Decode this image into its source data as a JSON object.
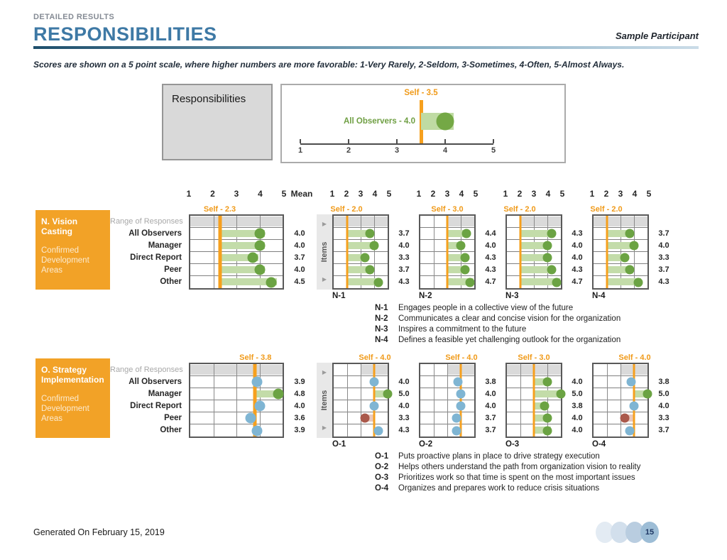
{
  "header": {
    "eyebrow": "DETAILED RESULTS",
    "title": "RESPONSIBILITIES",
    "participant": "Sample Participant",
    "note": "Scores are shown on a 5 point scale, where higher numbers are more favorable: 1-Very Rarely, 2-Seldom, 3-Sometimes, 4-Often, 5-Almost Always."
  },
  "summary": {
    "box_label": "Responsibilities"
  },
  "scale_header": {
    "ticks": [
      "1",
      "2",
      "3",
      "4",
      "5"
    ],
    "mean_label": "Mean"
  },
  "range_row_label": "Range of Responses",
  "rater_labels": [
    "All Observers",
    "Manager",
    "Direct Report",
    "Peer",
    "Other"
  ],
  "items_strip": {
    "label": "Items",
    "arrow_icon": "▶"
  },
  "colors": {
    "accent_orange": "#F6A01E",
    "green_dot": "#6BA343",
    "green_bar": "#C3DCA9",
    "blue_dot": "#7FB5D3",
    "red_dot": "#AA594B",
    "red_bar": "#E9C9BE",
    "title_blue": "#3E79A5",
    "range_gray": "#DADADA"
  },
  "chart_data": [
    {
      "type": "gauge",
      "title": "Responsibilities",
      "axis_min": 1,
      "axis_max": 5,
      "axis_ticks": [
        "1",
        "2",
        "3",
        "4",
        "5"
      ],
      "self_label": "Self - 3.5",
      "self_value": 3.5,
      "observers_label": "All Observers - 4.0",
      "observers_value": 4.0
    },
    {
      "type": "dot-plot-section",
      "section_title": "N. Vision Casting",
      "section_subtitle": "Confirmed Development Areas",
      "main": {
        "self_label": "Self - 2.3",
        "self": 2.3,
        "range": [
          1,
          5
        ],
        "rows": [
          {
            "value": 4.0,
            "color": "green",
            "mean": "4.0"
          },
          {
            "value": 4.0,
            "color": "green",
            "mean": "4.0"
          },
          {
            "value": 3.7,
            "color": "green",
            "mean": "3.7"
          },
          {
            "value": 4.0,
            "color": "green",
            "mean": "4.0"
          },
          {
            "value": 4.5,
            "color": "green",
            "mean": "4.5"
          }
        ]
      },
      "items": [
        {
          "code": "N-1",
          "self_label": "Self - 2.0",
          "self": 2.0,
          "range": [
            1,
            5
          ],
          "rows": [
            {
              "value": 3.7,
              "color": "green",
              "mean": "3.7"
            },
            {
              "value": 4.0,
              "color": "green",
              "mean": "4.0"
            },
            {
              "value": 3.3,
              "color": "green",
              "mean": "3.3"
            },
            {
              "value": 3.7,
              "color": "green",
              "mean": "3.7"
            },
            {
              "value": 4.3,
              "color": "green",
              "mean": "4.3"
            }
          ],
          "description": "Engages people in a collective view of the future"
        },
        {
          "code": "N-2",
          "self_label": "Self - 3.0",
          "self": 3.0,
          "range": [
            3,
            5
          ],
          "rows": [
            {
              "value": 4.4,
              "color": "green",
              "mean": "4.4"
            },
            {
              "value": 4.0,
              "color": "green",
              "mean": "4.0"
            },
            {
              "value": 4.3,
              "color": "green",
              "mean": "4.3"
            },
            {
              "value": 4.3,
              "color": "green",
              "mean": "4.3"
            },
            {
              "value": 4.7,
              "color": "green",
              "mean": "4.7"
            }
          ],
          "description": "Communicates a clear and concise vision for the organization"
        },
        {
          "code": "N-3",
          "self_label": "Self - 2.0",
          "self": 2.0,
          "range": [
            2,
            5
          ],
          "rows": [
            {
              "value": 4.3,
              "color": "green",
              "mean": "4.3"
            },
            {
              "value": 4.0,
              "color": "green",
              "mean": "4.0"
            },
            {
              "value": 4.0,
              "color": "green",
              "mean": "4.0"
            },
            {
              "value": 4.3,
              "color": "green",
              "mean": "4.3"
            },
            {
              "value": 4.7,
              "color": "green",
              "mean": "4.7"
            }
          ],
          "description": "Inspires a commitment to the future"
        },
        {
          "code": "N-4",
          "self_label": "Self - 2.0",
          "self": 2.0,
          "range": [
            1,
            5
          ],
          "rows": [
            {
              "value": 3.7,
              "color": "green",
              "mean": "3.7"
            },
            {
              "value": 4.0,
              "color": "green",
              "mean": "4.0"
            },
            {
              "value": 3.3,
              "color": "green",
              "mean": "3.3"
            },
            {
              "value": 3.7,
              "color": "green",
              "mean": "3.7"
            },
            {
              "value": 4.3,
              "color": "green",
              "mean": "4.3"
            }
          ],
          "description": "Defines a feasible yet challenging outlook for the organization"
        }
      ]
    },
    {
      "type": "dot-plot-section",
      "section_title": "O. Strategy Implementation",
      "section_subtitle": "Confirmed Development Areas",
      "main": {
        "self_label": "Self - 3.8",
        "self": 3.8,
        "range": [
          1,
          5
        ],
        "rows": [
          {
            "value": 3.9,
            "color": "blue",
            "mean": "3.9"
          },
          {
            "value": 4.8,
            "color": "green",
            "mean": "4.8"
          },
          {
            "value": 4.0,
            "color": "blue",
            "mean": "4.0"
          },
          {
            "value": 3.6,
            "color": "blue",
            "mean": "3.6"
          },
          {
            "value": 3.9,
            "color": "blue",
            "mean": "3.9"
          }
        ]
      },
      "items": [
        {
          "code": "O-1",
          "self_label": "Self - 4.0",
          "self": 4.0,
          "range": [
            3,
            5
          ],
          "rows": [
            {
              "value": 4.0,
              "color": "blue",
              "mean": "4.0"
            },
            {
              "value": 5.0,
              "color": "green",
              "mean": "5.0"
            },
            {
              "value": 4.0,
              "color": "blue",
              "mean": "4.0"
            },
            {
              "value": 3.3,
              "color": "red",
              "mean": "3.3"
            },
            {
              "value": 4.3,
              "color": "blue",
              "mean": "4.3"
            }
          ],
          "description": "Puts proactive plans in place to drive strategy execution"
        },
        {
          "code": "O-2",
          "self_label": "Self - 4.0",
          "self": 4.0,
          "range": [
            3,
            5
          ],
          "rows": [
            {
              "value": 3.8,
              "color": "blue",
              "mean": "3.8"
            },
            {
              "value": 4.0,
              "color": "blue",
              "mean": "4.0"
            },
            {
              "value": 4.0,
              "color": "blue",
              "mean": "4.0"
            },
            {
              "value": 3.7,
              "color": "blue",
              "mean": "3.7"
            },
            {
              "value": 3.7,
              "color": "blue",
              "mean": "3.7"
            }
          ],
          "description": "Helps others understand the path from organization vision to reality"
        },
        {
          "code": "O-3",
          "self_label": "Self - 3.0",
          "self": 3.0,
          "range": [
            1,
            5
          ],
          "rows": [
            {
              "value": 4.0,
              "color": "green",
              "mean": "4.0"
            },
            {
              "value": 5.0,
              "color": "green",
              "mean": "5.0"
            },
            {
              "value": 3.8,
              "color": "green",
              "mean": "3.8"
            },
            {
              "value": 4.0,
              "color": "green",
              "mean": "4.0"
            },
            {
              "value": 4.0,
              "color": "green",
              "mean": "4.0"
            }
          ],
          "description": "Prioritizes work so that time is spent on the most important issues"
        },
        {
          "code": "O-4",
          "self_label": "Self - 4.0",
          "self": 4.0,
          "range": [
            3,
            5
          ],
          "rows": [
            {
              "value": 3.8,
              "color": "blue",
              "mean": "3.8"
            },
            {
              "value": 5.0,
              "color": "green",
              "mean": "5.0"
            },
            {
              "value": 4.0,
              "color": "blue",
              "mean": "4.0"
            },
            {
              "value": 3.3,
              "color": "red",
              "mean": "3.3"
            },
            {
              "value": 3.7,
              "color": "blue",
              "mean": "3.7"
            }
          ],
          "description": "Organizes and prepares work to reduce crisis situations"
        }
      ]
    }
  ],
  "footer": {
    "generated": "Generated On February 15, 2019",
    "page": "15",
    "pager_colors": [
      "#E3EBF3",
      "#D2DFEC",
      "#B9CDE0",
      "#9DBDD6"
    ]
  }
}
